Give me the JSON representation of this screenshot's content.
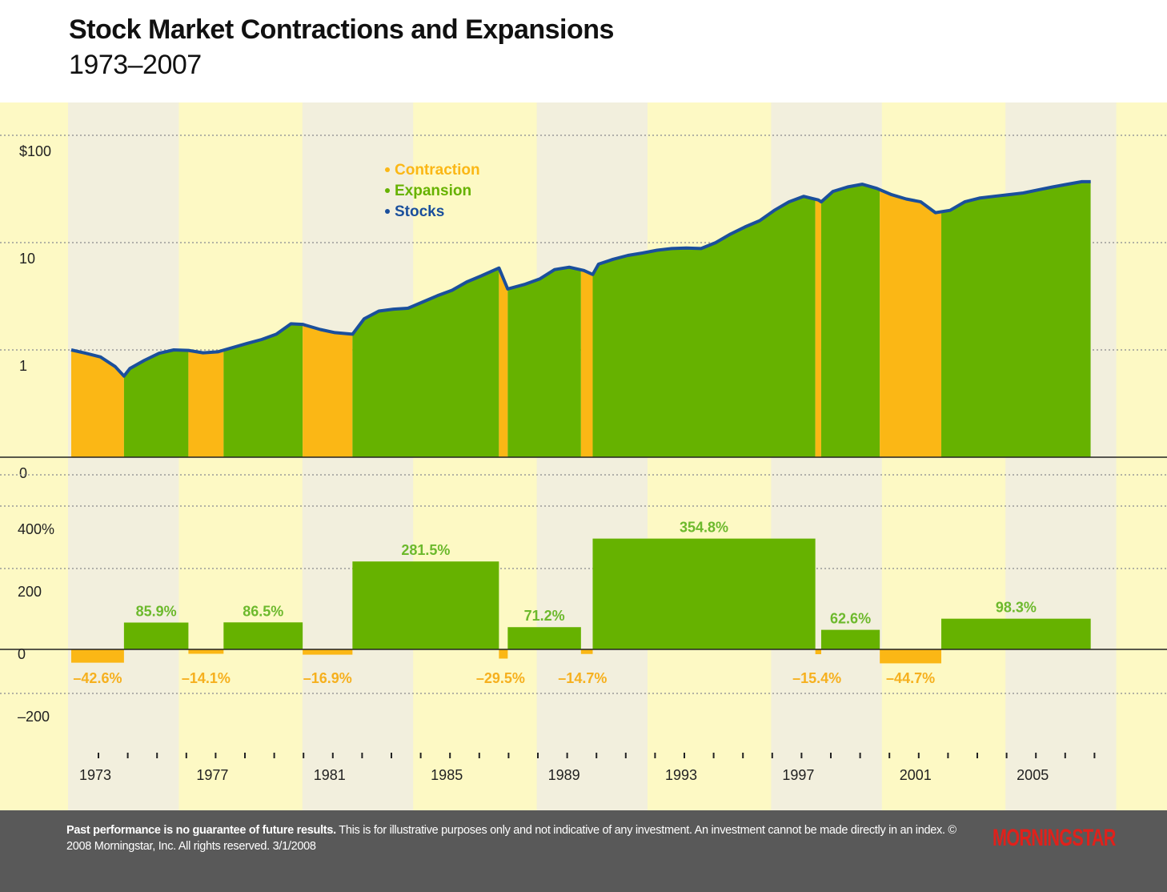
{
  "header": {
    "title": "Stock Market Contractions and Expansions",
    "subtitle": "1973–2007"
  },
  "footer": {
    "disclaimer_bold": "Past performance is no guarantee of future results.",
    "disclaimer_text": " This is for illustrative purposes only and not indicative of any investment. An investment cannot be made directly in an index. © 2008 Morningstar, Inc. All rights reserved. 3/1/2008",
    "logo": "MORNINGSTAR"
  },
  "colors": {
    "contraction": "#fbb715",
    "expansion": "#66b200",
    "stocks": "#1a4f9c",
    "background": "#fdf9c4",
    "band": "#f2efdd",
    "contraction_label": "#f6b01e",
    "expansion_label": "#6cb92c"
  },
  "chart_data": [
    {
      "type": "area",
      "title": "",
      "scale": "log",
      "ylim": [
        0.1,
        100
      ],
      "y_ticks": [
        {
          "value": 100,
          "label": "$100"
        },
        {
          "value": 10,
          "label": "10"
        },
        {
          "value": 1,
          "label": "1"
        },
        {
          "value": 0.1,
          "label": "0"
        }
      ],
      "legend": {
        "placement": "top-center",
        "entries": [
          {
            "label": "Contraction",
            "color": "#fbb715"
          },
          {
            "label": "Expansion",
            "color": "#66b200"
          },
          {
            "label": "Stocks",
            "color": "#1a4f9c"
          }
        ]
      },
      "series": [
        {
          "name": "Stocks",
          "x": [
            1973.0,
            1973.5,
            1974.0,
            1974.5,
            1974.8,
            1975.0,
            1975.5,
            1976.0,
            1976.5,
            1977.0,
            1977.5,
            1978.0,
            1978.5,
            1979.0,
            1979.5,
            1980.0,
            1980.5,
            1980.9,
            1981.5,
            1982.0,
            1982.6,
            1983.0,
            1983.5,
            1984.0,
            1984.5,
            1985.0,
            1985.5,
            1986.0,
            1986.5,
            1987.0,
            1987.6,
            1987.9,
            1988.5,
            1989.0,
            1989.5,
            1990.0,
            1990.5,
            1990.8,
            1991.0,
            1991.5,
            1992.0,
            1992.5,
            1993.0,
            1993.5,
            1994.0,
            1994.5,
            1995.0,
            1995.5,
            1996.0,
            1996.5,
            1997.0,
            1997.5,
            1998.0,
            1998.5,
            1998.6,
            1999.0,
            1999.5,
            2000.0,
            2000.5,
            2001.0,
            2001.5,
            2002.0,
            2002.5,
            2003.0,
            2003.5,
            2004.0,
            2004.5,
            2005.0,
            2005.5,
            2006.0,
            2006.5,
            2007.0,
            2007.5,
            2007.8
          ],
          "values": [
            1.0,
            0.93,
            0.86,
            0.7,
            0.57,
            0.67,
            0.8,
            0.93,
            1.0,
            0.99,
            0.94,
            0.96,
            1.05,
            1.15,
            1.25,
            1.4,
            1.75,
            1.73,
            1.55,
            1.45,
            1.4,
            1.95,
            2.3,
            2.4,
            2.45,
            2.8,
            3.2,
            3.6,
            4.3,
            4.9,
            5.8,
            3.7,
            4.1,
            4.6,
            5.6,
            5.9,
            5.5,
            5.05,
            6.3,
            7.0,
            7.6,
            8.0,
            8.5,
            8.8,
            8.9,
            8.8,
            10.0,
            12.0,
            14.0,
            16.0,
            20.0,
            24.0,
            27.0,
            25.0,
            24.0,
            30.0,
            33.0,
            35.0,
            32.0,
            28.0,
            25.5,
            24.0,
            19.0,
            20.0,
            24.0,
            26.0,
            27.0,
            28.0,
            29.0,
            31.0,
            33.0,
            35.0,
            37.0,
            37.0
          ]
        }
      ],
      "periods": [
        {
          "phase": "Contraction",
          "start": 1973.0,
          "end": 1974.8
        },
        {
          "phase": "Expansion",
          "start": 1974.8,
          "end": 1977.0
        },
        {
          "phase": "Contraction",
          "start": 1977.0,
          "end": 1978.2
        },
        {
          "phase": "Expansion",
          "start": 1978.2,
          "end": 1980.9
        },
        {
          "phase": "Contraction",
          "start": 1980.9,
          "end": 1982.6
        },
        {
          "phase": "Expansion",
          "start": 1982.6,
          "end": 1987.6
        },
        {
          "phase": "Contraction",
          "start": 1987.6,
          "end": 1987.9
        },
        {
          "phase": "Expansion",
          "start": 1987.9,
          "end": 1990.4
        },
        {
          "phase": "Contraction",
          "start": 1990.4,
          "end": 1990.8
        },
        {
          "phase": "Expansion",
          "start": 1990.8,
          "end": 1998.4
        },
        {
          "phase": "Contraction",
          "start": 1998.4,
          "end": 1998.6
        },
        {
          "phase": "Expansion",
          "start": 1998.6,
          "end": 2000.6
        },
        {
          "phase": "Contraction",
          "start": 2000.6,
          "end": 2002.7
        },
        {
          "phase": "Expansion",
          "start": 2002.7,
          "end": 2007.8
        }
      ]
    },
    {
      "type": "bar",
      "title": "",
      "ylim": [
        -300,
        500
      ],
      "y_ticks": [
        {
          "value": 400,
          "label": "400%"
        },
        {
          "value": 200,
          "label": "200"
        },
        {
          "value": 0,
          "label": "0"
        },
        {
          "value": -200,
          "label": "–200"
        }
      ],
      "bars": [
        {
          "phase": "Contraction",
          "start": 1973.0,
          "end": 1974.8,
          "value": -42.6,
          "label": "–42.6%"
        },
        {
          "phase": "Expansion",
          "start": 1974.8,
          "end": 1977.0,
          "value": 85.9,
          "label": "85.9%"
        },
        {
          "phase": "Contraction",
          "start": 1977.0,
          "end": 1978.2,
          "value": -14.1,
          "label": "–14.1%"
        },
        {
          "phase": "Expansion",
          "start": 1978.2,
          "end": 1980.9,
          "value": 86.5,
          "label": "86.5%"
        },
        {
          "phase": "Contraction",
          "start": 1980.9,
          "end": 1982.6,
          "value": -16.9,
          "label": "–16.9%"
        },
        {
          "phase": "Expansion",
          "start": 1982.6,
          "end": 1987.6,
          "value": 281.5,
          "label": "281.5%"
        },
        {
          "phase": "Contraction",
          "start": 1987.6,
          "end": 1987.9,
          "value": -29.5,
          "label": "–29.5%"
        },
        {
          "phase": "Expansion",
          "start": 1987.9,
          "end": 1990.4,
          "value": 71.2,
          "label": "71.2%"
        },
        {
          "phase": "Contraction",
          "start": 1990.4,
          "end": 1990.8,
          "value": -14.7,
          "label": "–14.7%"
        },
        {
          "phase": "Expansion",
          "start": 1990.8,
          "end": 1998.4,
          "value": 354.8,
          "label": "354.8%"
        },
        {
          "phase": "Contraction",
          "start": 1998.4,
          "end": 1998.6,
          "value": -15.4,
          "label": "–15.4%"
        },
        {
          "phase": "Expansion",
          "start": 1998.6,
          "end": 2000.6,
          "value": 62.6,
          "label": "62.6%"
        },
        {
          "phase": "Contraction",
          "start": 2000.6,
          "end": 2002.7,
          "value": -44.7,
          "label": "–44.7%"
        },
        {
          "phase": "Expansion",
          "start": 2002.7,
          "end": 2007.8,
          "value": 98.3,
          "label": "98.3%"
        }
      ]
    },
    {
      "type": "axis",
      "xlim": [
        1973,
        2008
      ],
      "x_tick_labels": [
        {
          "value": 1973,
          "label": "1973"
        },
        {
          "value": 1977,
          "label": "1977"
        },
        {
          "value": 1981,
          "label": "1981"
        },
        {
          "value": 1985,
          "label": "1985"
        },
        {
          "value": 1989,
          "label": "1989"
        },
        {
          "value": 1993,
          "label": "1993"
        },
        {
          "value": 1997,
          "label": "1997"
        },
        {
          "value": 2001,
          "label": "2001"
        },
        {
          "value": 2005,
          "label": "2005"
        }
      ],
      "grid": true
    }
  ]
}
